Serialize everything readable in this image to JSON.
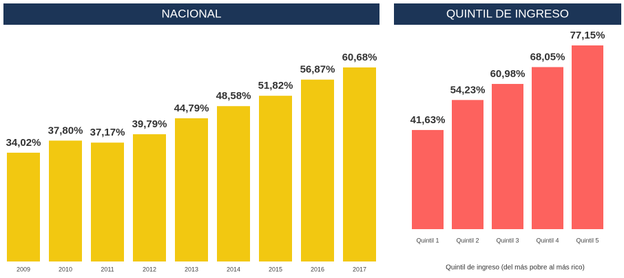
{
  "chart_data": [
    {
      "type": "bar",
      "title": "NACIONAL",
      "categories": [
        "2009",
        "2010",
        "2011",
        "2012",
        "2013",
        "2014",
        "2015",
        "2016",
        "2017"
      ],
      "values": [
        34.02,
        37.8,
        37.17,
        39.79,
        44.79,
        48.58,
        51.82,
        56.87,
        60.68
      ],
      "value_labels": [
        "34,02%",
        "37,80%",
        "37,17%",
        "39,79%",
        "44,79%",
        "48,58%",
        "51,82%",
        "56,87%",
        "60,68%"
      ],
      "color": "#f2c811"
    },
    {
      "type": "bar",
      "title": "QUINTIL DE INGRESO",
      "categories": [
        "Quintil 1",
        "Quintil 2",
        "Quintil 3",
        "Quintil 4",
        "Quintil 5"
      ],
      "values": [
        41.63,
        54.23,
        60.98,
        68.05,
        77.15
      ],
      "value_labels": [
        "41,63%",
        "54,23%",
        "60,98%",
        "68,05%",
        "77,15%"
      ],
      "color": "#fd625e",
      "x_label": "Quintil de ingreso (del más pobre al más rico)"
    }
  ]
}
